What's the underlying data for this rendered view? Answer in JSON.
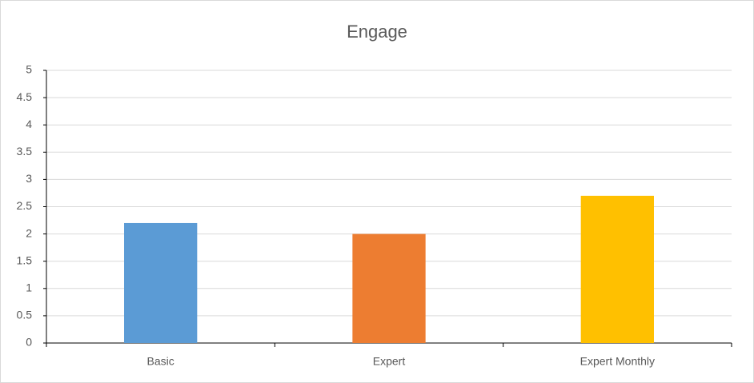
{
  "chart_data": {
    "type": "bar",
    "title": "Engage",
    "categories": [
      "Basic",
      "Expert",
      "Expert Monthly"
    ],
    "values": [
      2.2,
      2.0,
      2.7
    ],
    "colors": [
      "#5b9bd5",
      "#ed7d31",
      "#ffc000"
    ],
    "ylim": [
      0,
      5
    ],
    "yticks": [
      0,
      0.5,
      1,
      1.5,
      2,
      2.5,
      3,
      3.5,
      4,
      4.5,
      5
    ],
    "grid": true
  }
}
